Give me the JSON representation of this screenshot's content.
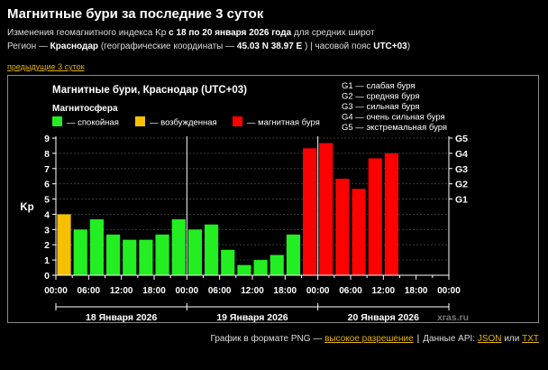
{
  "page": {
    "title": "Магнитные бури за последние 3 суток",
    "line1": {
      "prefix": "Изменения геомагнитного индекса Kp",
      "range": "с 18 по 20 января 2026 года",
      "suffix": "для средних широт"
    },
    "line2": {
      "region_label": "Регион —",
      "region": "Краснодар",
      "coords_label": "(географические координаты —",
      "coords": "45.03 N 38.97 E",
      "tz_label": ") | часовой пояс",
      "tz": "UTC+03",
      "close": ")"
    },
    "prev_link": "предыдущие 3 суток"
  },
  "footer": {
    "png_text": "График в формате PNG —",
    "png_link": "высокое разрешение",
    "api_text": "Данные API:",
    "json_link": "JSON",
    "or_text": "или",
    "txt_link": "TXT"
  },
  "chart_data": {
    "type": "bar",
    "title": "Магнитные бури, Краснодар (UTC+03)",
    "legend_title": "Магнитосфера",
    "legend": [
      {
        "label": "— спокойная",
        "color": "#22ee22"
      },
      {
        "label": "— возбужденная",
        "color": "#f5c000"
      },
      {
        "label": "— магнитная буря",
        "color": "#ff0000"
      }
    ],
    "storm_levels": [
      "G1 — слабая буря",
      "G2 — средняя буря",
      "G3 — сильная буря",
      "G4 — очень сильная буря",
      "G5 — экстремальная буря"
    ],
    "ylabel": "Kp",
    "ylim": [
      0,
      9
    ],
    "yticks": [
      "0",
      "1",
      "2",
      "3",
      "4",
      "5",
      "6",
      "7",
      "8",
      "9"
    ],
    "right_ticks": [
      {
        "label": "G1",
        "value": 5
      },
      {
        "label": "G2",
        "value": 6
      },
      {
        "label": "G3",
        "value": 7
      },
      {
        "label": "G4",
        "value": 8
      },
      {
        "label": "G5",
        "value": 9
      }
    ],
    "xticks": [
      "00:00",
      "06:00",
      "12:00",
      "18:00",
      "00:00",
      "06:00",
      "12:00",
      "18:00",
      "00:00",
      "06:00",
      "12:00",
      "18:00",
      "00:00"
    ],
    "days": [
      "18 Января 2026",
      "19 Января 2026",
      "20 Января 2026"
    ],
    "watermark": "xras.ru",
    "values": [
      4.0,
      3.0,
      3.67,
      2.67,
      2.33,
      2.33,
      2.67,
      3.67,
      3.0,
      3.33,
      1.67,
      0.67,
      1.0,
      1.33,
      2.67,
      8.33,
      8.67,
      6.33,
      5.67,
      7.67,
      8.0
    ],
    "colors": [
      "#f5c000",
      "#22ee22",
      "#22ee22",
      "#22ee22",
      "#22ee22",
      "#22ee22",
      "#22ee22",
      "#22ee22",
      "#22ee22",
      "#22ee22",
      "#22ee22",
      "#22ee22",
      "#22ee22",
      "#22ee22",
      "#22ee22",
      "#ff0000",
      "#ff0000",
      "#ff0000",
      "#ff0000",
      "#ff0000",
      "#ff0000"
    ]
  }
}
